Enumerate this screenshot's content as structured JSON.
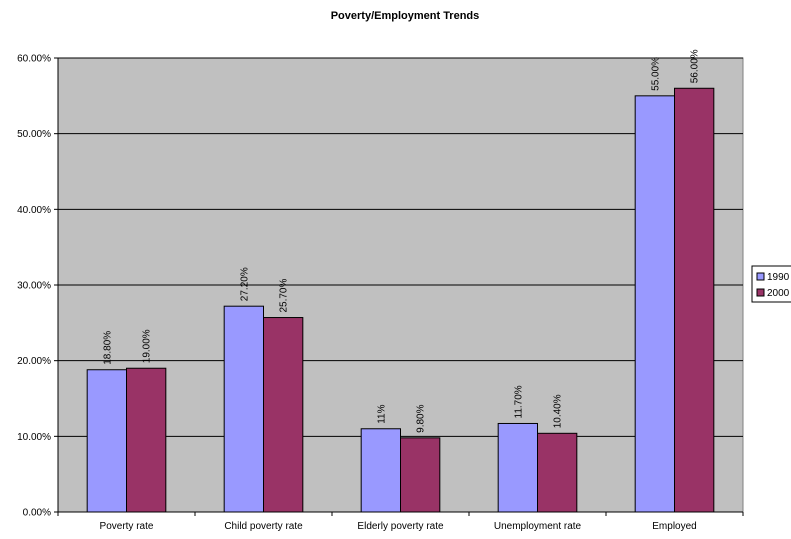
{
  "chart_data": {
    "type": "bar",
    "title": "Poverty/Employment Trends",
    "xlabel": "",
    "ylabel": "",
    "categories": [
      "Poverty rate",
      "Child poverty rate",
      "Elderly poverty rate",
      "Unemployment rate",
      "Employed"
    ],
    "series": [
      {
        "name": "1990",
        "values": [
          18.8,
          27.2,
          11.0,
          11.7,
          55.0
        ],
        "labels": [
          "18.80%",
          "27.20%",
          "11%",
          "11.70%",
          "55.00%"
        ],
        "color": "#9999ff"
      },
      {
        "name": "2000",
        "values": [
          19.0,
          25.7,
          9.8,
          10.4,
          56.0
        ],
        "labels": [
          "19.00%",
          "25.70%",
          "9.80%",
          "10.40%",
          "56.00%"
        ],
        "color": "#993366"
      }
    ],
    "ylim": [
      0,
      60
    ],
    "yticks": [
      0,
      10,
      20,
      30,
      40,
      50,
      60
    ],
    "ytick_labels": [
      "0.00%",
      "10.00%",
      "20.00%",
      "30.00%",
      "40.00%",
      "50.00%",
      "60.00%"
    ],
    "grid": true,
    "plot_background": "#c0c0c0",
    "legend_position": "right"
  }
}
